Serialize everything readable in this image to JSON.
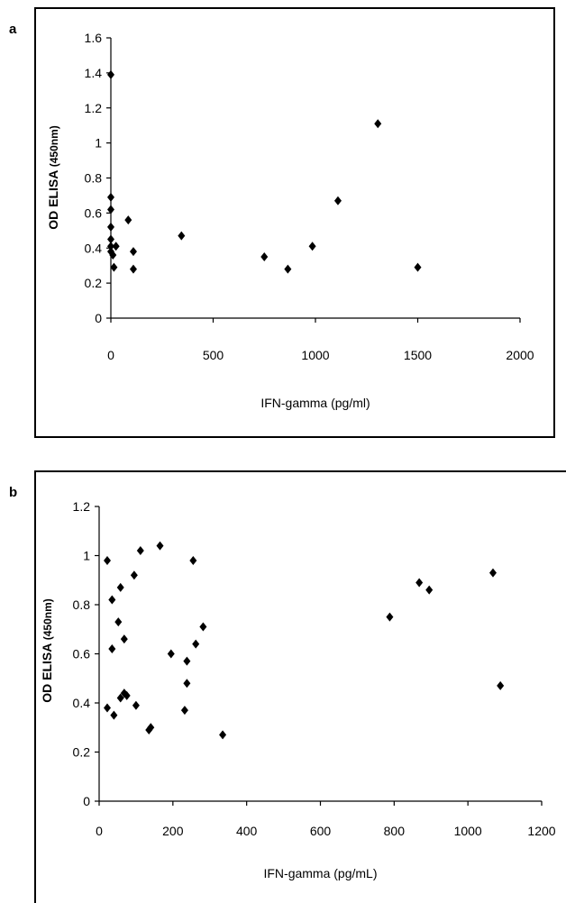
{
  "chart_data": [
    {
      "panel_label": "a",
      "type": "scatter",
      "xlabel": "IFN-gamma (pg/ml)",
      "ylabel": "OD ELISA",
      "ylabel_unit": "(450nm)",
      "xlim": [
        0,
        2000
      ],
      "ylim": [
        0,
        1.6
      ],
      "x_ticks": [
        0,
        500,
        1000,
        1500,
        2000
      ],
      "y_ticks": [
        0,
        0.2,
        0.4,
        0.6,
        0.8,
        1,
        1.2,
        1.4,
        1.6
      ],
      "x_tick_labels": [
        "0",
        "500",
        "1000",
        "1500",
        "2000"
      ],
      "y_tick_labels": [
        "0",
        "0.2",
        "0.4",
        "0.6",
        "0.8",
        "1",
        "1.2",
        "1.4",
        "1.6"
      ],
      "grid": false,
      "marker_color": "#000000",
      "points": [
        {
          "x": 0,
          "y": 1.39
        },
        {
          "x": 0,
          "y": 0.69
        },
        {
          "x": 0,
          "y": 0.62
        },
        {
          "x": 0,
          "y": 0.52
        },
        {
          "x": 0,
          "y": 0.45
        },
        {
          "x": 0,
          "y": 0.41
        },
        {
          "x": 0,
          "y": 0.38
        },
        {
          "x": 10,
          "y": 0.36
        },
        {
          "x": 15,
          "y": 0.29
        },
        {
          "x": 25,
          "y": 0.41
        },
        {
          "x": 85,
          "y": 0.56
        },
        {
          "x": 110,
          "y": 0.38
        },
        {
          "x": 110,
          "y": 0.28
        },
        {
          "x": 345,
          "y": 0.47
        },
        {
          "x": 750,
          "y": 0.35
        },
        {
          "x": 865,
          "y": 0.28
        },
        {
          "x": 985,
          "y": 0.41
        },
        {
          "x": 1110,
          "y": 0.67
        },
        {
          "x": 1305,
          "y": 1.11
        },
        {
          "x": 1500,
          "y": 0.29
        }
      ]
    },
    {
      "panel_label": "b",
      "type": "scatter",
      "xlabel": "IFN-gamma (pg/mL)",
      "ylabel": "OD ELISA",
      "ylabel_unit": "(450nm)",
      "xlim": [
        0,
        1200
      ],
      "ylim": [
        0,
        1.2
      ],
      "x_ticks": [
        0,
        200,
        400,
        600,
        800,
        1000,
        1200
      ],
      "y_ticks": [
        0,
        0.2,
        0.4,
        0.6,
        0.8,
        1,
        1.2
      ],
      "x_tick_labels": [
        "0",
        "200",
        "400",
        "600",
        "800",
        "1000",
        "1200"
      ],
      "y_tick_labels": [
        "0",
        "0.2",
        "0.4",
        "0.6",
        "0.8",
        "1",
        "1.2"
      ],
      "grid": false,
      "marker_color": "#000000",
      "points": [
        {
          "x": 22,
          "y": 0.98
        },
        {
          "x": 22,
          "y": 0.38
        },
        {
          "x": 35,
          "y": 0.82
        },
        {
          "x": 35,
          "y": 0.62
        },
        {
          "x": 40,
          "y": 0.35
        },
        {
          "x": 52,
          "y": 0.73
        },
        {
          "x": 58,
          "y": 0.87
        },
        {
          "x": 58,
          "y": 0.42
        },
        {
          "x": 68,
          "y": 0.66
        },
        {
          "x": 68,
          "y": 0.44
        },
        {
          "x": 75,
          "y": 0.43
        },
        {
          "x": 95,
          "y": 0.92
        },
        {
          "x": 100,
          "y": 0.39
        },
        {
          "x": 112,
          "y": 1.02
        },
        {
          "x": 135,
          "y": 0.29
        },
        {
          "x": 140,
          "y": 0.3
        },
        {
          "x": 165,
          "y": 1.04
        },
        {
          "x": 195,
          "y": 0.6
        },
        {
          "x": 232,
          "y": 0.37
        },
        {
          "x": 238,
          "y": 0.57
        },
        {
          "x": 238,
          "y": 0.48
        },
        {
          "x": 255,
          "y": 0.98
        },
        {
          "x": 262,
          "y": 0.64
        },
        {
          "x": 282,
          "y": 0.71
        },
        {
          "x": 335,
          "y": 0.27
        },
        {
          "x": 788,
          "y": 0.75
        },
        {
          "x": 868,
          "y": 0.89
        },
        {
          "x": 895,
          "y": 0.86
        },
        {
          "x": 1068,
          "y": 0.93
        },
        {
          "x": 1088,
          "y": 0.47
        }
      ]
    }
  ]
}
